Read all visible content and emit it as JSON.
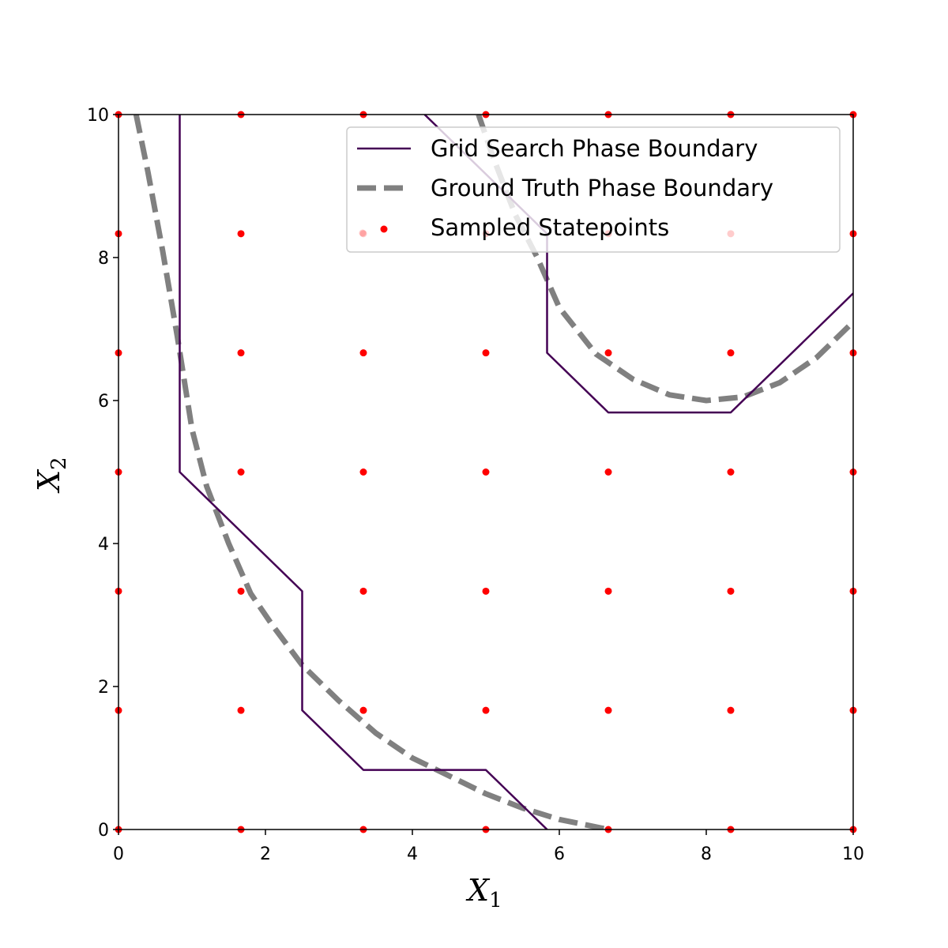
{
  "chart_data": {
    "type": "line",
    "title": "",
    "xlabel": "X",
    "xlabel_sub": "1",
    "ylabel": "X",
    "ylabel_sub": "2",
    "xlim": [
      0,
      10
    ],
    "ylim": [
      0,
      10
    ],
    "xticks": [
      "0",
      "2",
      "4",
      "6",
      "8",
      "10"
    ],
    "yticks": [
      "0",
      "2",
      "4",
      "6",
      "8",
      "10"
    ],
    "grid": false,
    "legend_placement": "top-right",
    "series": [
      {
        "name": "Grid Search Phase Boundary",
        "style": "solid",
        "color": "#440154",
        "segments": [
          [
            [
              0.833,
              10
            ],
            [
              0.833,
              5.0
            ],
            [
              2.5,
              3.333
            ],
            [
              2.5,
              1.667
            ],
            [
              3.333,
              0.833
            ],
            [
              5.0,
              0.833
            ],
            [
              5.833,
              0.0
            ]
          ],
          [
            [
              4.167,
              10
            ],
            [
              5.0,
              9.167
            ],
            [
              5.833,
              8.333
            ],
            [
              5.833,
              6.667
            ],
            [
              6.667,
              5.833
            ],
            [
              8.333,
              5.833
            ],
            [
              10.0,
              7.5
            ]
          ]
        ]
      },
      {
        "name": "Ground Truth Phase Boundary",
        "style": "dashed",
        "color": "#808080",
        "segments": [
          [
            [
              0.24,
              10
            ],
            [
              0.4,
              9.2
            ],
            [
              0.6,
              8.1
            ],
            [
              0.8,
              6.9
            ],
            [
              1.0,
              5.6
            ],
            [
              1.2,
              4.8
            ],
            [
              1.5,
              4.0
            ],
            [
              1.8,
              3.3
            ],
            [
              2.1,
              2.85
            ],
            [
              2.5,
              2.3
            ],
            [
              3.0,
              1.8
            ],
            [
              3.5,
              1.35
            ],
            [
              4.0,
              1.0
            ],
            [
              4.5,
              0.75
            ],
            [
              5.0,
              0.5
            ],
            [
              5.5,
              0.3
            ],
            [
              6.0,
              0.14
            ],
            [
              6.67,
              0.0
            ]
          ],
          [
            [
              4.9,
              10
            ],
            [
              5.1,
              9.4
            ],
            [
              5.4,
              8.6
            ],
            [
              5.7,
              8.0
            ],
            [
              6.0,
              7.3
            ],
            [
              6.5,
              6.65
            ],
            [
              7.0,
              6.3
            ],
            [
              7.5,
              6.08
            ],
            [
              8.0,
              6.0
            ],
            [
              8.5,
              6.05
            ],
            [
              9.0,
              6.25
            ],
            [
              9.5,
              6.6
            ],
            [
              10.0,
              7.1
            ]
          ]
        ]
      },
      {
        "name": "Sampled Statepoints",
        "style": "markers",
        "color": "#ff0000",
        "grid_values": [
          0,
          1.667,
          3.333,
          5.0,
          6.667,
          8.333,
          10.0
        ]
      }
    ]
  }
}
